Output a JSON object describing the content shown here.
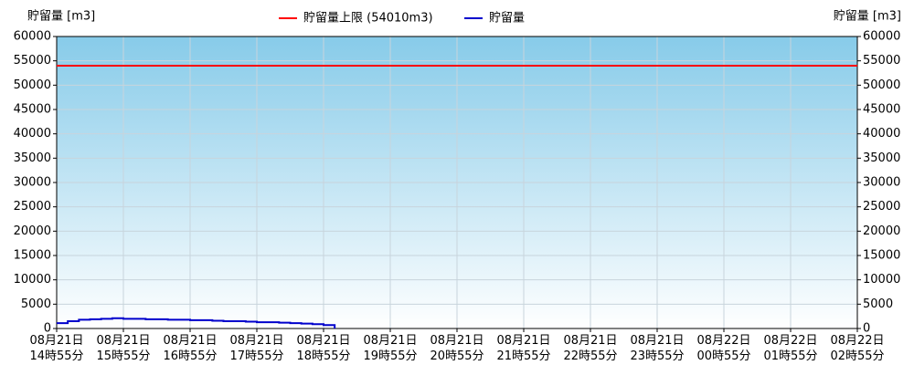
{
  "chart_data": {
    "type": "line",
    "y_label": "貯留量 [m3]",
    "y2_label": "貯留量 [m3]",
    "limit": {
      "name": "貯留量上限 (54010m3)",
      "value": 54010,
      "color": "#ff0000"
    },
    "x": [
      "08月21日 14時55分",
      "08月21日 15時05分",
      "08月21日 15時15分",
      "08月21日 15時25分",
      "08月21日 15時35分",
      "08月21日 15時45分",
      "08月21日 15時55分",
      "08月21日 16時05分",
      "08月21日 16時15分",
      "08月21日 16時25分",
      "08月21日 16時35分",
      "08月21日 16時45分",
      "08月21日 16時55分",
      "08月21日 17時05分",
      "08月21日 17時15分",
      "08月21日 17時25分",
      "08月21日 17時35分",
      "08月21日 17時45分",
      "08月21日 17時55分",
      "08月21日 18時05分",
      "08月21日 18時15分",
      "08月21日 18時25分",
      "08月21日 18時35分",
      "08月21日 18時45分",
      "08月21日 18時55分",
      "08月21日 19時05分"
    ],
    "series": [
      {
        "name": "貯留量",
        "color": "#0000cc",
        "values": [
          1100,
          1500,
          1800,
          1900,
          2000,
          2100,
          2000,
          2000,
          1900,
          1900,
          1800,
          1800,
          1700,
          1700,
          1600,
          1500,
          1500,
          1400,
          1300,
          1300,
          1200,
          1100,
          1000,
          900,
          700,
          0
        ]
      }
    ],
    "xticks": [
      "08月21日\n14時55分",
      "08月21日\n15時55分",
      "08月21日\n16時55分",
      "08月21日\n17時55分",
      "08月21日\n18時55分",
      "08月21日\n19時55分",
      "08月21日\n20時55分",
      "08月21日\n21時55分",
      "08月21日\n22時55分",
      "08月21日\n23時55分",
      "08月22日\n00時55分",
      "08月22日\n01時55分",
      "08月22日\n02時55分"
    ],
    "ylim": [
      0,
      60000
    ],
    "yticks": [
      0,
      5000,
      10000,
      15000,
      20000,
      25000,
      30000,
      35000,
      40000,
      45000,
      50000,
      55000,
      60000
    ],
    "grid": true
  }
}
